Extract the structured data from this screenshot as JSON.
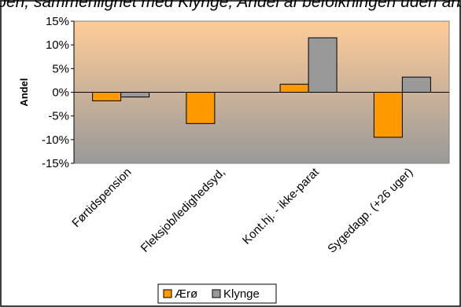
{
  "chart_data": {
    "type": "bar",
    "title": "gruppen, sammenlignet med Klynge; Andel af befolkningen uden arbejde",
    "xlabel": "",
    "ylabel": "Andel",
    "ylim": [
      -15,
      15
    ],
    "yticks": [
      15,
      10,
      5,
      0,
      -5,
      -10,
      -15
    ],
    "ytick_labels": [
      "15%",
      "10%",
      "5%",
      "0%",
      "-5%",
      "-10%",
      "-15%"
    ],
    "categories": [
      "Førtidspension",
      "Fleksjob/ledighedsyd,",
      "Kont.hj. - ikke-parat",
      "Sygedagp. (+26 uger)"
    ],
    "series": [
      {
        "name": "Ærø",
        "color": "#ff9900",
        "values": [
          -1.8,
          -6.6,
          1.7,
          -9.5
        ]
      },
      {
        "name": "Klynge",
        "color": "#999999",
        "values": [
          -1.0,
          0.0,
          11.5,
          3.2
        ]
      }
    ],
    "legend_position": "bottom",
    "grid": false,
    "plot_background": {
      "top": "#ffcc99",
      "bottom": "#999999"
    }
  }
}
